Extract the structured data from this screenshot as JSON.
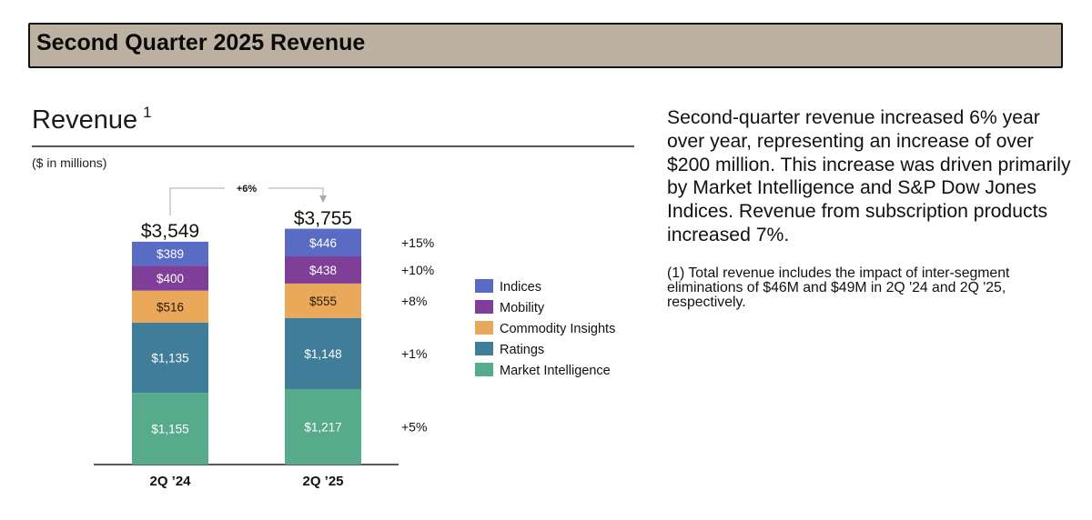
{
  "header": {
    "title": "Second Quarter 2025 Revenue"
  },
  "chart_header": {
    "title": "Revenue",
    "footnote_marker": "1",
    "units": "($ in millions)"
  },
  "narrative": "Second-quarter revenue increased 6% year over year, representing an increase of over $200 million. This increase was driven primarily by Market Intelligence and S&P Dow Jones Indices. Revenue from subscription products increased 7%.",
  "footnote": "(1) Total revenue includes the impact of inter-segment eliminations of $46M and $49M in 2Q '24 and 2Q '25, respectively.",
  "chart_data": {
    "type": "bar",
    "stacked": true,
    "title": "Revenue",
    "xlabel": "",
    "ylabel": "$ in millions",
    "categories": [
      "2Q ’24",
      "2Q ’25"
    ],
    "totals": [
      3549,
      3755
    ],
    "total_labels": [
      "$3,549",
      "$3,755"
    ],
    "growth_overall": "+6%",
    "series": [
      {
        "name": "Market Intelligence",
        "color": "#55ab8c",
        "values": [
          1155,
          1217
        ],
        "labels": [
          "$1,155",
          "$1,217"
        ],
        "label_color": "#ffffff",
        "growth": "+5%"
      },
      {
        "name": "Ratings",
        "color": "#3f7d98",
        "values": [
          1135,
          1148
        ],
        "labels": [
          "$1,135",
          "$1,148"
        ],
        "label_color": "#ffffff",
        "growth": "+1%"
      },
      {
        "name": "Commodity Insights",
        "color": "#e9a85a",
        "values": [
          516,
          555
        ],
        "labels": [
          "$516",
          "$555"
        ],
        "label_color": "#2a1a0a",
        "growth": "+8%"
      },
      {
        "name": "Mobility",
        "color": "#7f3f98",
        "values": [
          400,
          438
        ],
        "labels": [
          "$400",
          "$438"
        ],
        "label_color": "#ffffff",
        "growth": "+10%"
      },
      {
        "name": "Indices",
        "color": "#5a6bc4",
        "values": [
          389,
          446
        ],
        "labels": [
          "$389",
          "$446"
        ],
        "label_color": "#ffffff",
        "growth": "+15%"
      }
    ],
    "legend_order": [
      "Indices",
      "Mobility",
      "Commodity Insights",
      "Ratings",
      "Market Intelligence"
    ],
    "legend_position": "right",
    "grid": false
  }
}
